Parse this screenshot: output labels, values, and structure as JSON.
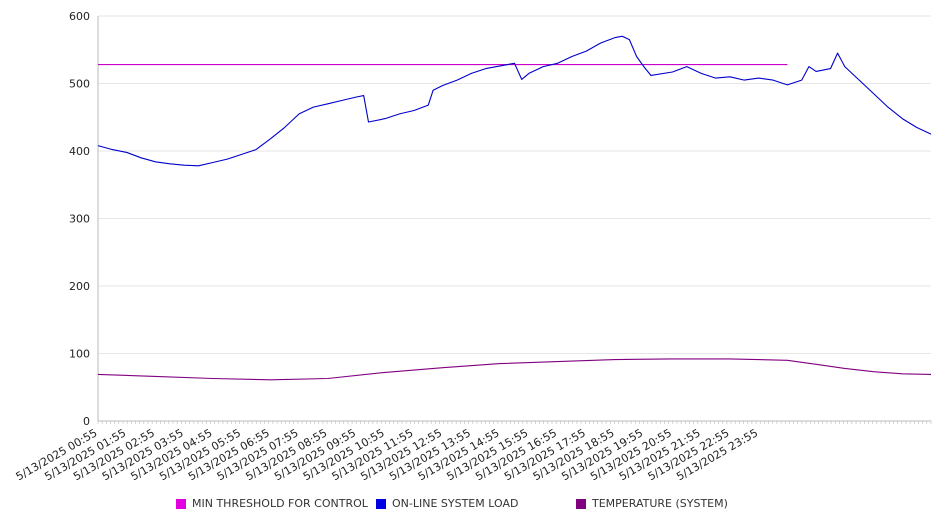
{
  "chart_data": {
    "type": "line",
    "y_ticks": [
      0,
      100,
      200,
      300,
      400,
      500,
      600
    ],
    "ylim": [
      0,
      600
    ],
    "grid": true,
    "legend_position": "bottom",
    "x_tick_labels": [
      "5/13/2025 00:55",
      "5/13/2025 01:55",
      "5/13/2025 02:55",
      "5/13/2025 03:55",
      "5/13/2025 04:55",
      "5/13/2025 05:55",
      "5/13/2025 06:55",
      "5/13/2025 07:55",
      "5/13/2025 08:55",
      "5/13/2025 09:55",
      "5/13/2025 10:55",
      "5/13/2025 11:55",
      "5/13/2025 12:55",
      "5/13/2025 13:55",
      "5/13/2025 14:55",
      "5/13/2025 15:55",
      "5/13/2025 16:55",
      "5/13/2025 17:55",
      "5/13/2025 18:55",
      "5/13/2025 19:55",
      "5/13/2025 20:55",
      "5/13/2025 21:55",
      "5/13/2025 22:55",
      "5/13/2025 23:55"
    ],
    "series": [
      {
        "name": "MIN THRESHOLD FOR CONTROL",
        "color": "#cc00cc",
        "points": [
          [
            "5/13/2025 00:55",
            528
          ],
          [
            "5/14/2025 00:55",
            528
          ]
        ]
      },
      {
        "name": "ON-LINE SYSTEM LOAD",
        "color": "#0000cc",
        "points": [
          [
            "5/13/2025 00:55",
            408
          ],
          [
            "5/13/2025 01:25",
            402
          ],
          [
            "5/13/2025 01:55",
            398
          ],
          [
            "5/13/2025 02:25",
            390
          ],
          [
            "5/13/2025 02:55",
            384
          ],
          [
            "5/13/2025 03:25",
            381
          ],
          [
            "5/13/2025 03:55",
            379
          ],
          [
            "5/13/2025 04:25",
            378
          ],
          [
            "5/13/2025 04:55",
            383
          ],
          [
            "5/13/2025 05:25",
            388
          ],
          [
            "5/13/2025 05:55",
            395
          ],
          [
            "5/13/2025 06:25",
            402
          ],
          [
            "5/13/2025 06:55",
            418
          ],
          [
            "5/13/2025 07:25",
            435
          ],
          [
            "5/13/2025 07:55",
            455
          ],
          [
            "5/13/2025 08:25",
            465
          ],
          [
            "5/13/2025 08:55",
            470
          ],
          [
            "5/13/2025 09:25",
            475
          ],
          [
            "5/13/2025 09:55",
            480
          ],
          [
            "5/13/2025 10:10",
            482
          ],
          [
            "5/13/2025 10:20",
            443
          ],
          [
            "5/13/2025 10:55",
            448
          ],
          [
            "5/13/2025 11:25",
            455
          ],
          [
            "5/13/2025 11:55",
            460
          ],
          [
            "5/13/2025 12:25",
            468
          ],
          [
            "5/13/2025 12:35",
            490
          ],
          [
            "5/13/2025 12:55",
            497
          ],
          [
            "5/13/2025 13:25",
            505
          ],
          [
            "5/13/2025 13:55",
            515
          ],
          [
            "5/13/2025 14:25",
            522
          ],
          [
            "5/13/2025 14:55",
            526
          ],
          [
            "5/13/2025 15:25",
            530
          ],
          [
            "5/13/2025 15:40",
            506
          ],
          [
            "5/13/2025 15:55",
            515
          ],
          [
            "5/13/2025 16:25",
            525
          ],
          [
            "5/13/2025 16:55",
            530
          ],
          [
            "5/13/2025 17:25",
            540
          ],
          [
            "5/13/2025 17:55",
            548
          ],
          [
            "5/13/2025 18:25",
            560
          ],
          [
            "5/13/2025 18:55",
            568
          ],
          [
            "5/13/2025 19:10",
            570
          ],
          [
            "5/13/2025 19:25",
            565
          ],
          [
            "5/13/2025 19:40",
            540
          ],
          [
            "5/13/2025 19:55",
            525
          ],
          [
            "5/13/2025 20:10",
            512
          ],
          [
            "5/13/2025 20:55",
            517
          ],
          [
            "5/13/2025 21:25",
            525
          ],
          [
            "5/13/2025 21:55",
            515
          ],
          [
            "5/13/2025 22:25",
            508
          ],
          [
            "5/13/2025 22:55",
            510
          ],
          [
            "5/13/2025 23:25",
            505
          ],
          [
            "5/13/2025 23:55",
            508
          ],
          [
            "5/14/2025 00:25",
            505
          ],
          [
            "5/14/2025 00:55",
            498
          ],
          [
            "5/14/2025 01:25",
            505
          ],
          [
            "5/14/2025 01:40",
            525
          ],
          [
            "5/14/2025 01:55",
            518
          ],
          [
            "5/14/2025 02:25",
            522
          ],
          [
            "5/14/2025 02:40",
            545
          ],
          [
            "5/14/2025 02:55",
            525
          ],
          [
            "5/14/2025 03:25",
            505
          ],
          [
            "5/14/2025 03:55",
            485
          ],
          [
            "5/14/2025 04:25",
            465
          ],
          [
            "5/14/2025 04:55",
            448
          ],
          [
            "5/14/2025 05:25",
            435
          ],
          [
            "5/14/2025 05:55",
            425
          ]
        ]
      },
      {
        "name": "TEMPERATURE (SYSTEM)",
        "color": "#800080",
        "points": [
          [
            "5/13/2025 00:55",
            69
          ],
          [
            "5/13/2025 02:55",
            66
          ],
          [
            "5/13/2025 04:55",
            63
          ],
          [
            "5/13/2025 06:55",
            61
          ],
          [
            "5/13/2025 08:55",
            63
          ],
          [
            "5/13/2025 10:55",
            72
          ],
          [
            "5/13/2025 12:55",
            79
          ],
          [
            "5/13/2025 14:55",
            85
          ],
          [
            "5/13/2025 16:55",
            88
          ],
          [
            "5/13/2025 18:55",
            91
          ],
          [
            "5/13/2025 20:55",
            92
          ],
          [
            "5/13/2025 22:55",
            92
          ],
          [
            "5/14/2025 00:55",
            90
          ],
          [
            "5/14/2025 01:55",
            84
          ],
          [
            "5/14/2025 02:55",
            78
          ],
          [
            "5/14/2025 03:55",
            73
          ],
          [
            "5/14/2025 04:55",
            70
          ],
          [
            "5/14/2025 05:55",
            69
          ]
        ]
      }
    ]
  }
}
